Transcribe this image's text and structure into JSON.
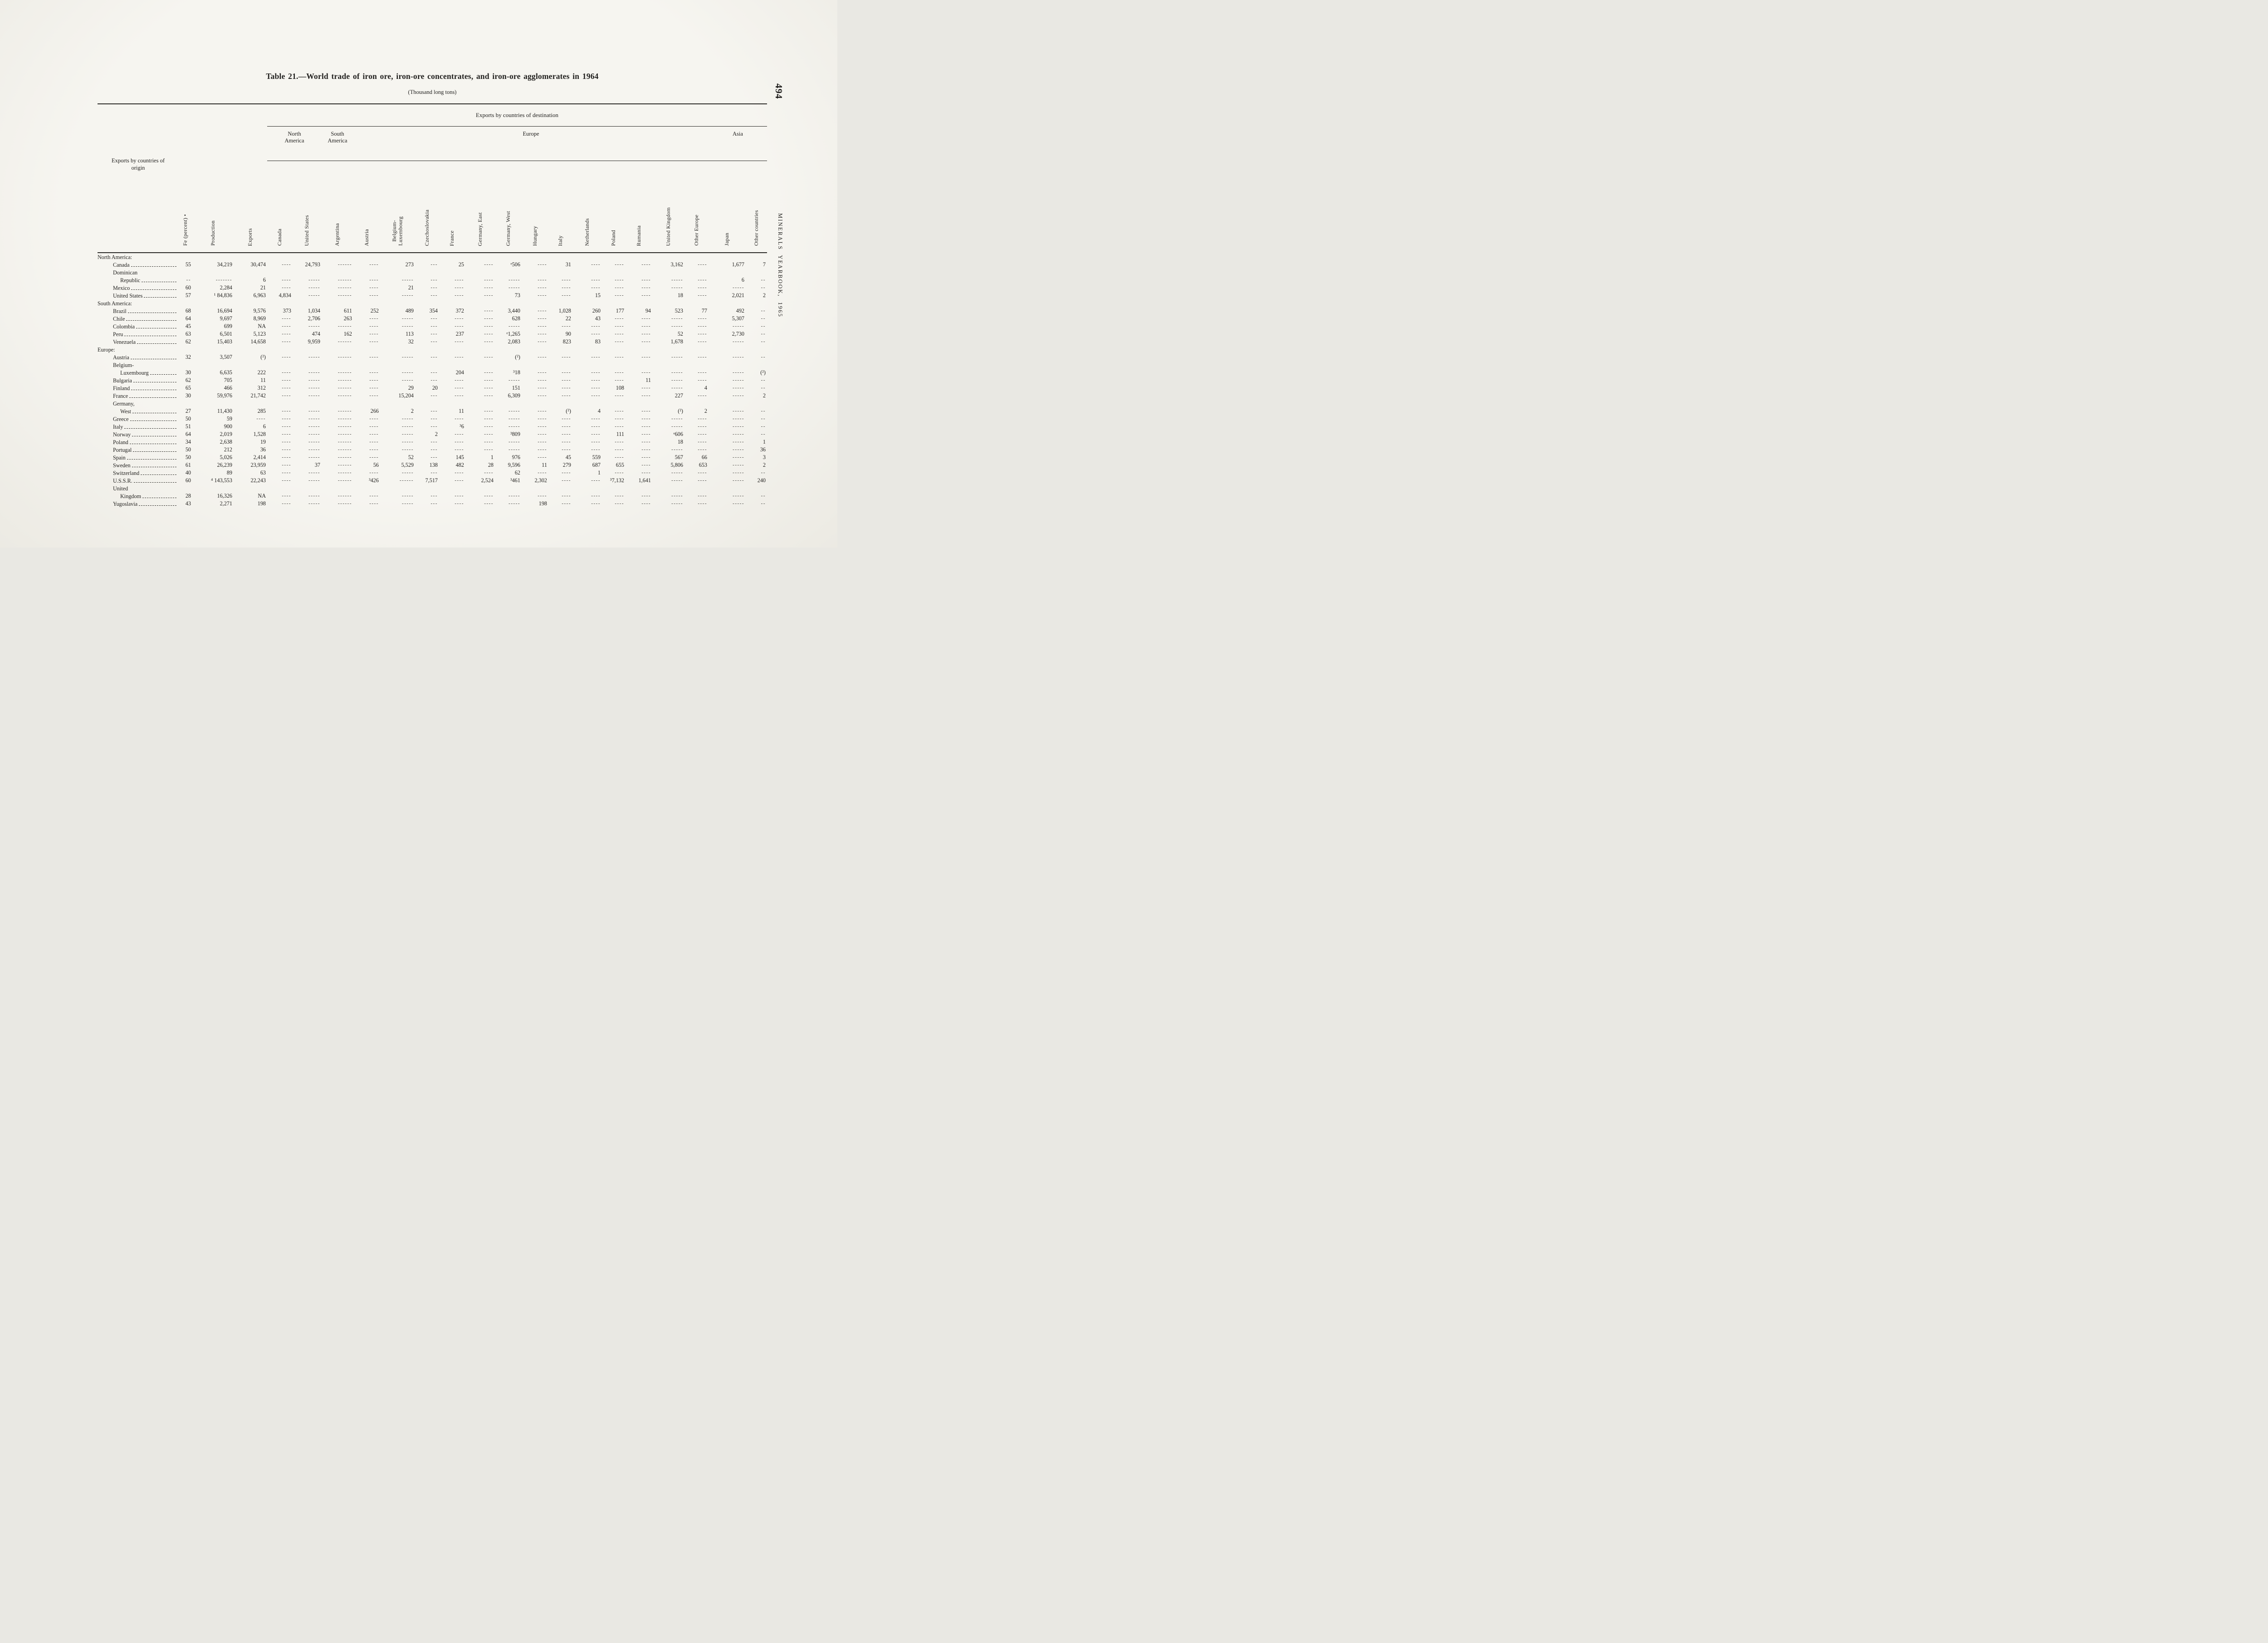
{
  "page": {
    "number": "494",
    "margin_note": "MINERALS YEARBOOK, 1965",
    "title": "Table 21.—World trade of iron ore, iron-ore concentrates, and iron-ore agglomerates in 1964",
    "subtitle": "(Thousand long tons)"
  },
  "table": {
    "stub_header": "Exports by countries of origin",
    "destination_banner": "Exports by countries of destination",
    "groups": [
      {
        "label": "North America",
        "span": 2
      },
      {
        "label": "South America",
        "span": 1
      },
      {
        "label": "Europe",
        "span": 13
      },
      {
        "label": "Asia",
        "span": 2
      }
    ],
    "columns": [
      "Fe (percent) •",
      "Production",
      "Exports",
      "Canada",
      "United States",
      "Argentina",
      "Austria",
      "Belgium-\nLuxembourg",
      "Czechoslovakia",
      "France",
      "Germany, East",
      "Germany, West",
      "Hungary",
      "Italy",
      "Netherlands",
      "Poland",
      "Rumania",
      "United Kingdom",
      "Other Europe",
      "Japan",
      "Other countries"
    ],
    "rows": [
      {
        "label": "North America:",
        "type": "section",
        "indent": 0
      },
      {
        "label": "Canada",
        "type": "data",
        "indent": 1,
        "cells": [
          "55",
          "34,219",
          "30,474",
          "----",
          "24,793",
          "------",
          "----",
          "273",
          "---",
          "25",
          "----",
          "ᵉ506",
          "----",
          "31",
          "----",
          "----",
          "----",
          "3,162",
          "----",
          "1,677",
          "7"
        ]
      },
      {
        "label": "Dominican",
        "type": "plain",
        "indent": 1
      },
      {
        "label": "Republic",
        "type": "data",
        "indent": 2,
        "cells": [
          "--",
          "-------",
          "6",
          "----",
          "-----",
          "------",
          "----",
          "-----",
          "---",
          "----",
          "----",
          "-----",
          "----",
          "----",
          "----",
          "----",
          "----",
          "-----",
          "----",
          "6",
          "--"
        ]
      },
      {
        "label": "Mexico",
        "type": "data",
        "indent": 1,
        "cells": [
          "60",
          "2,284",
          "21",
          "----",
          "-----",
          "------",
          "----",
          "21",
          "---",
          "----",
          "----",
          "-----",
          "----",
          "----",
          "----",
          "----",
          "----",
          "-----",
          "----",
          "-----",
          "--"
        ]
      },
      {
        "label": "United States",
        "type": "data",
        "indent": 1,
        "cells": [
          "57",
          "¹ 84,836",
          "6,963",
          "4,834",
          "-----",
          "------",
          "----",
          "-----",
          "---",
          "----",
          "----",
          "73",
          "----",
          "----",
          "15",
          "----",
          "----",
          "18",
          "----",
          "2,021",
          "2"
        ]
      },
      {
        "label": "South America:",
        "type": "section",
        "indent": 0
      },
      {
        "label": "Brazil",
        "type": "data",
        "indent": 1,
        "cells": [
          "68",
          "16,694",
          "9,576",
          "373",
          "1,034",
          "611",
          "252",
          "489",
          "354",
          "372",
          "----",
          "3,440",
          "----",
          "1,028",
          "260",
          "177",
          "94",
          "523",
          "77",
          "492",
          "--"
        ]
      },
      {
        "label": "Chile",
        "type": "data",
        "indent": 1,
        "cells": [
          "64",
          "9,697",
          "8,969",
          "----",
          "2,706",
          "263",
          "----",
          "-----",
          "---",
          "----",
          "----",
          "628",
          "----",
          "22",
          "43",
          "----",
          "----",
          "-----",
          "----",
          "5,307",
          "--"
        ]
      },
      {
        "label": "Colombia",
        "type": "data",
        "indent": 1,
        "cells": [
          "45",
          "699",
          "NA",
          "----",
          "-----",
          "------",
          "----",
          "-----",
          "---",
          "----",
          "----",
          "-----",
          "----",
          "----",
          "----",
          "----",
          "----",
          "-----",
          "----",
          "-----",
          "--"
        ]
      },
      {
        "label": "Peru",
        "type": "data",
        "indent": 1,
        "cells": [
          "63",
          "6,501",
          "5,123",
          "----",
          "474",
          "162",
          "----",
          "113",
          "---",
          "237",
          "----",
          "ᵉ1,265",
          "----",
          "90",
          "----",
          "----",
          "----",
          "52",
          "----",
          "2,730",
          "--"
        ]
      },
      {
        "label": "Venezuela",
        "type": "data",
        "indent": 1,
        "cells": [
          "62",
          "15,403",
          "14,658",
          "----",
          "9,959",
          "------",
          "----",
          "32",
          "---",
          "----",
          "----",
          "2,083",
          "----",
          "823",
          "83",
          "----",
          "----",
          "1,678",
          "----",
          "-----",
          "--"
        ]
      },
      {
        "label": "Europe:",
        "type": "section",
        "indent": 0
      },
      {
        "label": "Austria",
        "type": "data",
        "indent": 1,
        "cells": [
          "32",
          "3,507",
          "(²)",
          "----",
          "-----",
          "------",
          "----",
          "-----",
          "---",
          "----",
          "----",
          "(²)",
          "----",
          "----",
          "----",
          "----",
          "----",
          "-----",
          "----",
          "-----",
          "--"
        ]
      },
      {
        "label": "Belgium-",
        "type": "plain",
        "indent": 1
      },
      {
        "label": "Luxembourg",
        "type": "data",
        "indent": 2,
        "cells": [
          "30",
          "6,635",
          "222",
          "----",
          "-----",
          "------",
          "----",
          "-----",
          "---",
          "204",
          "----",
          "³18",
          "----",
          "----",
          "----",
          "----",
          "----",
          "-----",
          "----",
          "-----",
          "(²)"
        ]
      },
      {
        "label": "Bulgaria",
        "type": "data",
        "indent": 1,
        "cells": [
          "62",
          "705",
          "11",
          "----",
          "-----",
          "------",
          "----",
          "-----",
          "---",
          "----",
          "----",
          "-----",
          "----",
          "----",
          "----",
          "----",
          "11",
          "-----",
          "----",
          "-----",
          "--"
        ]
      },
      {
        "label": "Finland",
        "type": "data",
        "indent": 1,
        "cells": [
          "65",
          "466",
          "312",
          "----",
          "-----",
          "------",
          "----",
          "29",
          "20",
          "----",
          "----",
          "151",
          "----",
          "----",
          "----",
          "108",
          "----",
          "-----",
          "4",
          "-----",
          "--"
        ]
      },
      {
        "label": "France",
        "type": "data",
        "indent": 1,
        "cells": [
          "30",
          "59,976",
          "21,742",
          "----",
          "-----",
          "------",
          "----",
          "15,204",
          "---",
          "----",
          "----",
          "6,309",
          "----",
          "----",
          "----",
          "----",
          "----",
          "227",
          "----",
          "-----",
          "2"
        ]
      },
      {
        "label": "Germany,",
        "type": "plain",
        "indent": 1
      },
      {
        "label": "West",
        "type": "data",
        "indent": 2,
        "cells": [
          "27",
          "11,430",
          "285",
          "----",
          "-----",
          "------",
          "266",
          "2",
          "---",
          "11",
          "----",
          "-----",
          "----",
          "(²)",
          "4",
          "----",
          "----",
          "(²)",
          "2",
          "-----",
          "--"
        ]
      },
      {
        "label": "Greece",
        "type": "data",
        "indent": 1,
        "cells": [
          "50",
          "59",
          "----",
          "----",
          "-----",
          "------",
          "----",
          "-----",
          "---",
          "----",
          "----",
          "-----",
          "----",
          "----",
          "----",
          "----",
          "----",
          "-----",
          "----",
          "-----",
          "--"
        ]
      },
      {
        "label": "Italy",
        "type": "data",
        "indent": 1,
        "cells": [
          "51",
          "900",
          "6",
          "----",
          "-----",
          "------",
          "----",
          "-----",
          "---",
          "³6",
          "----",
          "-----",
          "----",
          "----",
          "----",
          "----",
          "----",
          "-----",
          "----",
          "-----",
          "--"
        ]
      },
      {
        "label": "Norway",
        "type": "data",
        "indent": 1,
        "cells": [
          "64",
          "2,019",
          "1,528",
          "----",
          "-----",
          "------",
          "----",
          "-----",
          "2",
          "----",
          "----",
          "³809",
          "----",
          "----",
          "----",
          "111",
          "----",
          "ᵉ606",
          "----",
          "-----",
          "--"
        ]
      },
      {
        "label": "Poland",
        "type": "data",
        "indent": 1,
        "cells": [
          "34",
          "2,638",
          "19",
          "----",
          "-----",
          "------",
          "----",
          "-----",
          "---",
          "----",
          "----",
          "-----",
          "----",
          "----",
          "----",
          "----",
          "----",
          "18",
          "----",
          "-----",
          "1"
        ]
      },
      {
        "label": "Portugal",
        "type": "data",
        "indent": 1,
        "cells": [
          "50",
          "212",
          "36",
          "----",
          "-----",
          "------",
          "----",
          "-----",
          "---",
          "----",
          "----",
          "-----",
          "----",
          "----",
          "----",
          "----",
          "----",
          "-----",
          "----",
          "-----",
          "36"
        ]
      },
      {
        "label": "Spain",
        "type": "data",
        "indent": 1,
        "cells": [
          "50",
          "5,026",
          "2,414",
          "----",
          "-----",
          "------",
          "----",
          "52",
          "---",
          "145",
          "1",
          "976",
          "----",
          "45",
          "559",
          "----",
          "----",
          "567",
          "66",
          "-----",
          "3"
        ]
      },
      {
        "label": "Sweden",
        "type": "data",
        "indent": 1,
        "cells": [
          "61",
          "26,239",
          "23,959",
          "----",
          "37",
          "------",
          "56",
          "5,529",
          "138",
          "482",
          "28",
          "9,596",
          "11",
          "279",
          "687",
          "655",
          "----",
          "5,806",
          "653",
          "-----",
          "2"
        ]
      },
      {
        "label": "Switzerland",
        "type": "data",
        "indent": 1,
        "cells": [
          "40",
          "89",
          "63",
          "----",
          "-----",
          "------",
          "----",
          "-----",
          "---",
          "----",
          "----",
          "62",
          "----",
          "----",
          "1",
          "----",
          "----",
          "-----",
          "----",
          "-----",
          "--"
        ]
      },
      {
        "label": "U.S.S.R.",
        "type": "data",
        "indent": 1,
        "cells": [
          "60",
          "⁴ 143,553",
          "22,243",
          "----",
          "-----",
          "------",
          "³426",
          "------",
          "7,517",
          "----",
          "2,524",
          "³461",
          "2,302",
          "----",
          "----",
          "³7,132",
          "1,641",
          "-----",
          "----",
          "-----",
          "240"
        ]
      },
      {
        "label": "United",
        "type": "plain",
        "indent": 1
      },
      {
        "label": "Kingdom",
        "type": "data",
        "indent": 2,
        "cells": [
          "28",
          "16,326",
          "NA",
          "----",
          "-----",
          "------",
          "----",
          "-----",
          "---",
          "----",
          "----",
          "-----",
          "----",
          "----",
          "----",
          "----",
          "----",
          "-----",
          "----",
          "-----",
          "--"
        ]
      },
      {
        "label": "Yugoslavia",
        "type": "data",
        "indent": 1,
        "cells": [
          "43",
          "2,271",
          "198",
          "----",
          "-----",
          "------",
          "----",
          "-----",
          "---",
          "----",
          "----",
          "-----",
          "198",
          "----",
          "----",
          "----",
          "----",
          "-----",
          "----",
          "-----",
          "--"
        ]
      }
    ]
  }
}
